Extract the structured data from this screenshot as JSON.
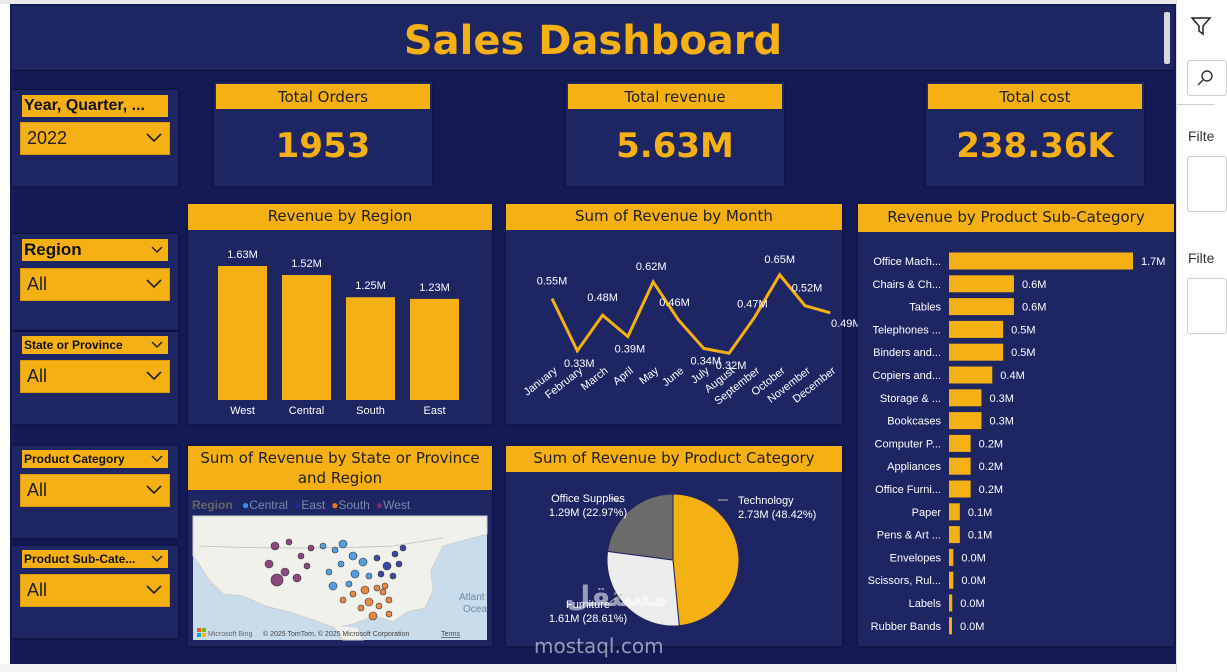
{
  "dashboard": {
    "title": "Sales Dashboard"
  },
  "slicers": {
    "year": {
      "label": "Year, Quarter, ...",
      "value": "2022"
    },
    "region": {
      "label": "Region",
      "value": "All"
    },
    "state": {
      "label": "State or Province",
      "value": "All"
    },
    "category": {
      "label": "Product Category",
      "value": "All"
    },
    "subcategory": {
      "label": "Product Sub-Cate...",
      "value": "All"
    }
  },
  "cards": {
    "orders": {
      "label": "Total Orders",
      "value": "1953"
    },
    "revenue": {
      "label": "Total revenue",
      "value": "5.63M"
    },
    "cost": {
      "label": "Total cost",
      "value": "238.36K"
    }
  },
  "charts": {
    "region_title": "Revenue by Region",
    "month_title": "Sum of Revenue by Month",
    "subcat_title": "Revenue by Product Sub-Category",
    "map_title_1": "Sum of Revenue by State or Province",
    "map_title_2": "and Region",
    "category_title": "Sum of Revenue by Product Category"
  },
  "map": {
    "legend_title": "Region",
    "legend": [
      {
        "name": "Central",
        "color": "#3a8fe0"
      },
      {
        "name": "East",
        "color": "#1c2a9c"
      },
      {
        "name": "South",
        "color": "#e8752a"
      },
      {
        "name": "West",
        "color": "#7a2a6e"
      }
    ],
    "ocean_label_1": "Atlant",
    "ocean_label_2": "Ocea",
    "bing": "Microsoft Bing",
    "copyright": "© 2025 TomTom, © 2025 Microsoft Corporation",
    "terms": "Terms"
  },
  "filters_pane": {
    "label1": "Filte",
    "label2": "Filte"
  },
  "watermark": {
    "text": "mostaql.com",
    "arabic": "مستقل"
  },
  "colors": {
    "background": "#141a54",
    "panel": "#1e2563",
    "accent": "#f5b014"
  },
  "chart_data": [
    {
      "type": "bar",
      "title": "Revenue by Region",
      "categories": [
        "West",
        "Central",
        "South",
        "East"
      ],
      "values": [
        1.63,
        1.52,
        1.25,
        1.23
      ],
      "labels": [
        "1.63M",
        "1.52M",
        "1.25M",
        "1.23M"
      ],
      "ylim": [
        0,
        1.8
      ]
    },
    {
      "type": "line",
      "title": "Sum of Revenue by Month",
      "categories": [
        "January",
        "February",
        "March",
        "April",
        "May",
        "June",
        "July",
        "August",
        "September",
        "October",
        "November",
        "December"
      ],
      "values": [
        0.55,
        0.33,
        0.48,
        0.39,
        0.62,
        0.46,
        0.34,
        0.32,
        0.47,
        0.65,
        0.52,
        0.49
      ],
      "labels": [
        "0.55M",
        "0.33M",
        "0.48M",
        "0.39M",
        "0.62M",
        "0.46M",
        "0.34M",
        "0.32M",
        "0.47M",
        "0.65M",
        "0.52M",
        "0.49M"
      ],
      "ylim": [
        0.3,
        0.67
      ]
    },
    {
      "type": "bar",
      "orientation": "horizontal",
      "title": "Revenue by Product Sub-Category",
      "categories": [
        "Office Mach...",
        "Chairs & Ch...",
        "Tables",
        "Telephones ...",
        "Binders and...",
        "Copiers and...",
        "Storage & ...",
        "Bookcases",
        "Computer P...",
        "Appliances",
        "Office Furni...",
        "Paper",
        "Pens & Art ...",
        "Envelopes",
        "Scissors, Rul...",
        "Labels",
        "Rubber Bands"
      ],
      "values": [
        1.7,
        0.6,
        0.6,
        0.5,
        0.5,
        0.4,
        0.3,
        0.3,
        0.2,
        0.2,
        0.2,
        0.1,
        0.1,
        0.04,
        0.04,
        0.03,
        0.02
      ],
      "labels": [
        "1.7M",
        "0.6M",
        "0.6M",
        "0.5M",
        "0.5M",
        "0.4M",
        "0.3M",
        "0.3M",
        "0.2M",
        "0.2M",
        "0.2M",
        "0.1M",
        "0.1M",
        "0.0M",
        "0.0M",
        "0.0M",
        "0.0M"
      ],
      "xlim": [
        0,
        1.7
      ]
    },
    {
      "type": "pie",
      "title": "Sum of Revenue by Product Category",
      "categories": [
        "Technology",
        "Furniture",
        "Office Supplies"
      ],
      "values": [
        2.73,
        1.61,
        1.29
      ],
      "value_labels": [
        "2.73M (48.42%)",
        "1.61M (28.61%)",
        "1.29M (22.97%)"
      ],
      "colors": [
        "#f5b014",
        "#ececec",
        "#6b6b6b"
      ]
    }
  ]
}
